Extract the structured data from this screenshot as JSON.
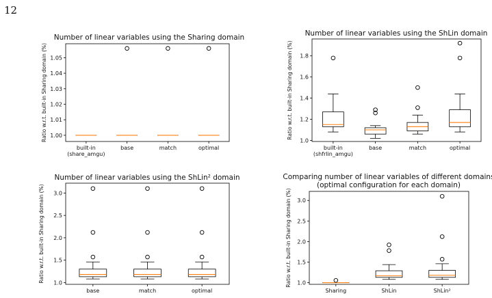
{
  "page_number": "12",
  "colors": {
    "median": "#ff7f0e",
    "box": "#000000",
    "axes": "#000000",
    "outlier": "#000000"
  },
  "chart_data": [
    {
      "type": "box",
      "title": "Number of linear variables using the Sharing domain",
      "ylabel": "Ratio w.r.t. built-in Sharing domain (%)",
      "ylim": [
        0.996,
        1.059
      ],
      "yticks": [
        1.0,
        1.01,
        1.02,
        1.03,
        1.04,
        1.05
      ],
      "ytick_labels": [
        "1.00",
        "1.01",
        "1.02",
        "1.03",
        "1.04",
        "1.05"
      ],
      "categories": [
        [
          "built-in",
          "(share_amgu)"
        ],
        [
          "base"
        ],
        [
          "match"
        ],
        [
          "optimal"
        ]
      ],
      "boxes": [
        {
          "whislo": 1.0,
          "q1": 1.0,
          "med": 1.0,
          "q3": 1.0,
          "whishi": 1.0,
          "fliers": []
        },
        {
          "whislo": 1.0,
          "q1": 1.0,
          "med": 1.0,
          "q3": 1.0,
          "whishi": 1.0,
          "fliers": [
            1.056
          ]
        },
        {
          "whislo": 1.0,
          "q1": 1.0,
          "med": 1.0,
          "q3": 1.0,
          "whishi": 1.0,
          "fliers": [
            1.056
          ]
        },
        {
          "whislo": 1.0,
          "q1": 1.0,
          "med": 1.0,
          "q3": 1.0,
          "whishi": 1.0,
          "fliers": [
            1.056
          ]
        }
      ]
    },
    {
      "type": "box",
      "title": "Number of linear variables using the ShLin domain",
      "ylabel": "Ratio w.r.t. built-in Sharing domain (%)",
      "ylim": [
        0.99,
        1.96
      ],
      "yticks": [
        1.0,
        1.2,
        1.4,
        1.6,
        1.8
      ],
      "ytick_labels": [
        "1.0",
        "1.2",
        "1.4",
        "1.6",
        "1.8"
      ],
      "categories": [
        [
          "built-in",
          "(shfrlin_amgu)"
        ],
        [
          "base"
        ],
        [
          "match"
        ],
        [
          "optimal"
        ]
      ],
      "boxes": [
        {
          "whislo": 1.08,
          "q1": 1.13,
          "med": 1.15,
          "q3": 1.27,
          "whishi": 1.44,
          "fliers": [
            1.78
          ]
        },
        {
          "whislo": 1.02,
          "q1": 1.06,
          "med": 1.1,
          "q3": 1.12,
          "whishi": 1.14,
          "fliers": [
            1.26,
            1.29
          ]
        },
        {
          "whislo": 1.06,
          "q1": 1.09,
          "med": 1.13,
          "q3": 1.17,
          "whishi": 1.24,
          "fliers": [
            1.31,
            1.5
          ]
        },
        {
          "whislo": 1.08,
          "q1": 1.13,
          "med": 1.17,
          "q3": 1.29,
          "whishi": 1.44,
          "fliers": [
            1.78,
            1.92
          ]
        }
      ]
    },
    {
      "type": "box",
      "title": "Number of linear variables using the ShLin² domain",
      "ylabel": "Ratio w.r.t. built-in Sharing domain (%)",
      "ylim": [
        0.96,
        3.22
      ],
      "yticks": [
        1.0,
        1.5,
        2.0,
        2.5,
        3.0
      ],
      "ytick_labels": [
        "1.0",
        "1.5",
        "2.0",
        "2.5",
        "3.0"
      ],
      "categories": [
        [
          "base"
        ],
        [
          "match"
        ],
        [
          "optimal"
        ]
      ],
      "boxes": [
        {
          "whislo": 1.08,
          "q1": 1.13,
          "med": 1.18,
          "q3": 1.3,
          "whishi": 1.46,
          "fliers": [
            1.57,
            2.12,
            3.1
          ]
        },
        {
          "whislo": 1.08,
          "q1": 1.13,
          "med": 1.18,
          "q3": 1.3,
          "whishi": 1.46,
          "fliers": [
            1.57,
            2.12,
            3.1
          ]
        },
        {
          "whislo": 1.08,
          "q1": 1.13,
          "med": 1.18,
          "q3": 1.3,
          "whishi": 1.46,
          "fliers": [
            1.57,
            2.12,
            3.1
          ]
        }
      ]
    },
    {
      "type": "box",
      "title": "Comparing number of linear variables of different domains",
      "subtitle": "(optimal configuration for each domain)",
      "ylabel": "Ratio w.r.t. built-in Sharing domain (%)",
      "ylim": [
        0.96,
        3.22
      ],
      "yticks": [
        1.0,
        1.5,
        2.0,
        2.5,
        3.0
      ],
      "ytick_labels": [
        "1.0",
        "1.5",
        "2.0",
        "2.5",
        "3.0"
      ],
      "categories": [
        [
          "Sharing"
        ],
        [
          "ShLin"
        ],
        [
          "ShLin²"
        ]
      ],
      "boxes": [
        {
          "whislo": 1.0,
          "q1": 1.0,
          "med": 1.0,
          "q3": 1.0,
          "whishi": 1.0,
          "fliers": [
            1.056
          ]
        },
        {
          "whislo": 1.08,
          "q1": 1.13,
          "med": 1.17,
          "q3": 1.29,
          "whishi": 1.44,
          "fliers": [
            1.78,
            1.92
          ]
        },
        {
          "whislo": 1.08,
          "q1": 1.13,
          "med": 1.18,
          "q3": 1.3,
          "whishi": 1.46,
          "fliers": [
            1.57,
            2.12,
            3.1
          ]
        }
      ]
    }
  ]
}
